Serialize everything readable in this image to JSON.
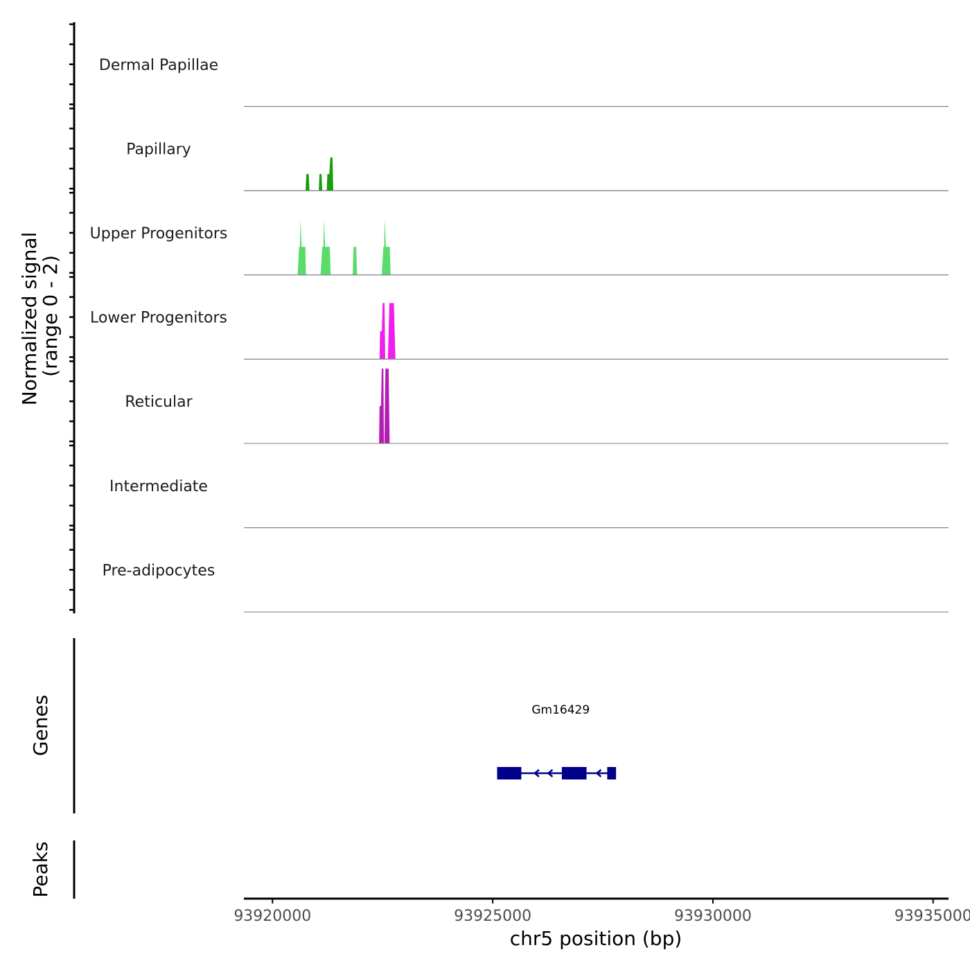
{
  "chart_data": {
    "type": "area",
    "chromosome": "chr5",
    "xlabel": "chr5 position (bp)",
    "ylabel_line1": "Normalized signal",
    "ylabel_line2": "(range 0 - 2)",
    "xlim": [
      93919350,
      93935350
    ],
    "x_ticks": [
      93920000,
      93925000,
      93930000,
      93935000
    ],
    "x_tick_labels": [
      "93920000",
      "93925000",
      "93930000",
      "93935000"
    ],
    "signal_range": [
      0,
      2
    ],
    "tracks": [
      {
        "name": "Dermal Papillae",
        "color": "#006400",
        "peaks": []
      },
      {
        "name": "Papillary",
        "color": "#1a9e0a",
        "peaks": [
          {
            "start": 93920750,
            "end": 93920840,
            "height": 0.8
          },
          {
            "start": 93921050,
            "end": 93921130,
            "height": 0.8
          },
          {
            "start": 93921230,
            "end": 93921380,
            "height": 1.6,
            "shoulder": 0.8
          }
        ]
      },
      {
        "name": "Upper Progenitors",
        "color": "#5adc6a",
        "peaks": [
          {
            "start": 93920570,
            "end": 93920760,
            "height": 1.35,
            "shoulder": 1.35,
            "spike": 2.7
          },
          {
            "start": 93921090,
            "end": 93921320,
            "height": 1.35,
            "shoulder": 1.35,
            "spike": 2.7
          },
          {
            "start": 93921820,
            "end": 93921920,
            "height": 1.35
          },
          {
            "start": 93922480,
            "end": 93922680,
            "height": 1.35,
            "shoulder": 1.35,
            "spike": 2.7
          }
        ]
      },
      {
        "name": "Lower Progenitors",
        "color": "#f01ef0",
        "peaks": [
          {
            "start": 93922430,
            "end": 93922560,
            "height": 2.7,
            "shoulder": 1.35
          },
          {
            "start": 93922620,
            "end": 93922790,
            "height": 2.7
          }
        ]
      },
      {
        "name": "Reticular",
        "color": "#b41eb4",
        "peaks": [
          {
            "start": 93922420,
            "end": 93922530,
            "height": 3.6,
            "shoulder": 1.8
          },
          {
            "start": 93922540,
            "end": 93922660,
            "height": 3.6
          }
        ]
      },
      {
        "name": "Intermediate",
        "color": "#8b0a8b",
        "peaks": []
      },
      {
        "name": "Pre-adipocytes",
        "color": "#4b0082",
        "peaks": []
      }
    ],
    "genes": [
      {
        "name": "Gm16429",
        "strand": "-",
        "start": 93925100,
        "end": 93927800,
        "exons": [
          [
            93925100,
            93925650
          ],
          [
            93926570,
            93927130
          ],
          [
            93927600,
            93927800
          ]
        ],
        "color": "#00008b"
      }
    ],
    "genes_label": "Genes",
    "peaks_label": "Peaks",
    "peak_regions": []
  }
}
